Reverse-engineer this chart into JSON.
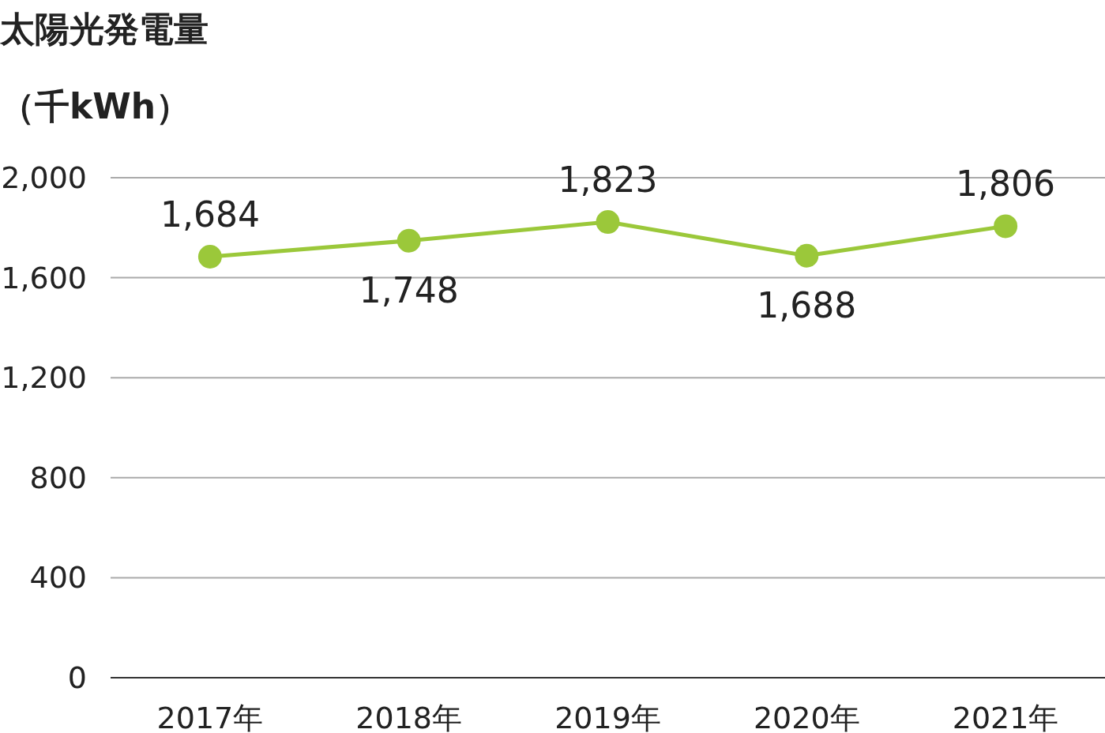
{
  "chart_data": {
    "type": "line",
    "title": "太陽光発電量",
    "ylabel": "（千kWh）",
    "categories": [
      "2017年",
      "2018年",
      "2019年",
      "2020年",
      "2021年"
    ],
    "series": [
      {
        "color": "#9bc83a",
        "values": [
          1684,
          1748,
          1823,
          1688,
          1806
        ],
        "value_labels": [
          "1,684",
          "1,748",
          "1,823",
          "1,688",
          "1,806"
        ]
      }
    ],
    "ylim": [
      0,
      2000
    ],
    "yticks": [
      {
        "value": 0,
        "label": "0"
      },
      {
        "value": 400,
        "label": "400"
      },
      {
        "value": 800,
        "label": "800"
      },
      {
        "value": 1200,
        "label": "1,200"
      },
      {
        "value": 1600,
        "label": "1,600"
      },
      {
        "value": 2000,
        "label": "2,000"
      }
    ],
    "grid": "y",
    "marker": "circle",
    "line_style": "solid"
  }
}
